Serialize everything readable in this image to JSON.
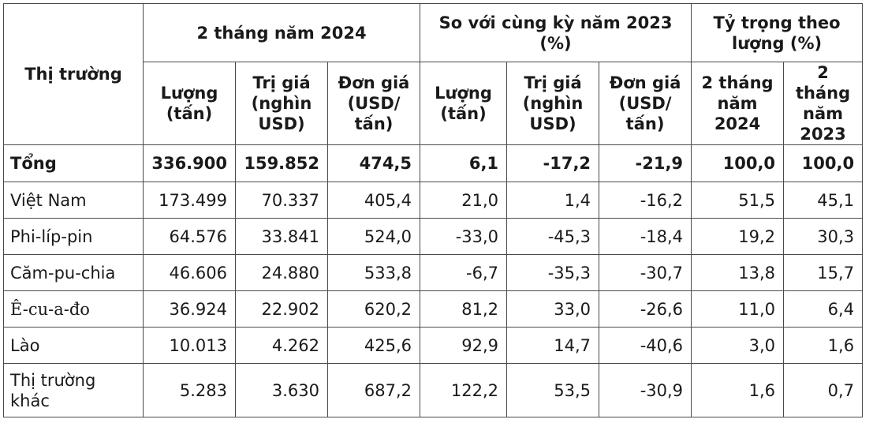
{
  "header": {
    "market": "Thị trường",
    "group_2024": "2 tháng năm 2024",
    "group_compare": "So với cùng kỳ năm 2023 (%)",
    "group_share": "Tỷ trọng theo lượng (%)",
    "sub": {
      "qty": "Lượng (tấn)",
      "value": "Trị giá (nghìn USD)",
      "price": "Đơn giá (USD/ tấn)",
      "qty2": "Lượng (tấn)",
      "value2": "Trị giá (nghìn USD)",
      "price2": "Đơn giá (USD/ tấn)",
      "share2024": "2 tháng năm 2024",
      "share2023": "2 tháng năm 2023"
    }
  },
  "rows": [
    {
      "label": "Tổng",
      "c": [
        "336.900",
        "159.852",
        "474,5",
        "6,1",
        "-17,2",
        "-21,9",
        "100,0",
        "100,0"
      ]
    },
    {
      "label": "Việt Nam",
      "c": [
        "173.499",
        "70.337",
        "405,4",
        "21,0",
        "1,4",
        "-16,2",
        "51,5",
        "45,1"
      ]
    },
    {
      "label": "Phi-líp-pin",
      "c": [
        "64.576",
        "33.841",
        "524,0",
        "-33,0",
        "-45,3",
        "-18,4",
        "19,2",
        "30,3"
      ]
    },
    {
      "label": "Căm-pu-chia",
      "c": [
        "46.606",
        "24.880",
        "533,8",
        "-6,7",
        "-35,3",
        "-30,7",
        "13,8",
        "15,7"
      ]
    },
    {
      "label": "Ê-cu-a-đo",
      "c": [
        "36.924",
        "22.902",
        "620,2",
        "81,2",
        "33,0",
        "-26,6",
        "11,0",
        "6,4"
      ]
    },
    {
      "label": "Lào",
      "c": [
        "10.013",
        "4.262",
        "425,6",
        "92,9",
        "14,7",
        "-40,6",
        "3,0",
        "1,6"
      ]
    },
    {
      "label": "Thị trường khác",
      "c": [
        "5.283",
        "3.630",
        "687,2",
        "122,2",
        "53,5",
        "-30,9",
        "1,6",
        "0,7"
      ]
    }
  ]
}
